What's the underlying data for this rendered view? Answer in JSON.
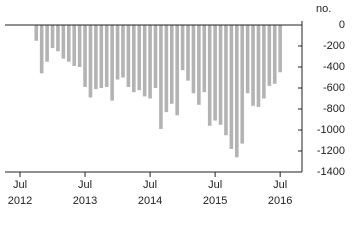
{
  "chart_data": {
    "type": "bar",
    "y_unit": "no.",
    "categories": [
      {
        "month": "Jul",
        "year": "2012"
      },
      null,
      null,
      null,
      null,
      null,
      null,
      null,
      null,
      null,
      null,
      null,
      {
        "month": "Jul",
        "year": "2013"
      },
      null,
      null,
      null,
      null,
      null,
      null,
      null,
      null,
      null,
      null,
      null,
      {
        "month": "Jul",
        "year": "2014"
      },
      null,
      null,
      null,
      null,
      null,
      null,
      null,
      null,
      null,
      null,
      null,
      {
        "month": "Jul",
        "year": "2015"
      },
      null,
      null,
      null,
      null,
      null,
      null,
      null,
      null,
      null,
      null,
      null,
      {
        "month": "Jul",
        "year": "2016"
      }
    ],
    "values": [
      null,
      null,
      null,
      -150,
      -460,
      -350,
      -220,
      -250,
      -320,
      -350,
      -390,
      -400,
      -590,
      -690,
      -610,
      -600,
      -590,
      -720,
      -520,
      -500,
      -590,
      -640,
      -620,
      -680,
      -700,
      -600,
      -990,
      -830,
      -750,
      -860,
      -430,
      -530,
      -650,
      -760,
      -640,
      -960,
      -910,
      -950,
      -1050,
      -1180,
      -1260,
      -1130,
      -650,
      -770,
      -780,
      -700,
      -580,
      -560,
      -450
    ],
    "color": "#b3b3b3",
    "ylim": [
      -1400,
      0
    ],
    "yticks": [
      0,
      -200,
      -400,
      -600,
      -800,
      -1000,
      -1200,
      -1400
    ],
    "grid": false
  }
}
